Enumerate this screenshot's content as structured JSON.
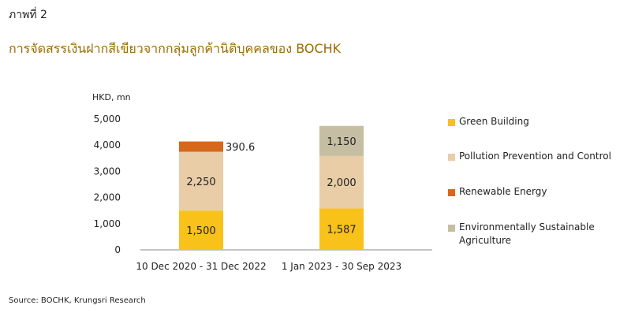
{
  "figure_label": "ภาพที่ 2",
  "title": "การจัดสรรเงินฝากสีเขียวจากกลุ่มลูกค้านิติบุคคลของ BOCHK",
  "source": "Source: BOCHK, Krungsri Research",
  "chart_data": {
    "type": "bar",
    "stacked": true,
    "ylabel": "HKD, mn",
    "ylim": [
      0,
      5000
    ],
    "yticks": [
      0,
      1000,
      2000,
      3000,
      4000,
      5000
    ],
    "ytick_labels": [
      "0",
      "1,000",
      "2,000",
      "3,000",
      "4,000",
      "5,000"
    ],
    "categories": [
      "10 Dec 2020 - 31 Dec 2022",
      "1 Jan 2023 - 30 Sep 2023"
    ],
    "series": [
      {
        "name": "Green Building",
        "color": "#f8c21a",
        "values": [
          1500,
          1587
        ],
        "labels": [
          "1,500",
          "1,587"
        ]
      },
      {
        "name": "Pollution Prevention and Control",
        "color": "#e8cda7",
        "values": [
          2250,
          2000
        ],
        "labels": [
          "2,250",
          "2,000"
        ]
      },
      {
        "name": "Renewable Energy",
        "color": "#d6681c",
        "values": [
          390.6,
          0
        ],
        "labels": [
          "390.6",
          ""
        ]
      },
      {
        "name": "Environmentally Sustainable Agriculture",
        "color": "#c5bea3",
        "values": [
          0,
          1150
        ],
        "labels": [
          "",
          "1,150"
        ]
      }
    ],
    "legend_position": "right",
    "grid": false
  }
}
